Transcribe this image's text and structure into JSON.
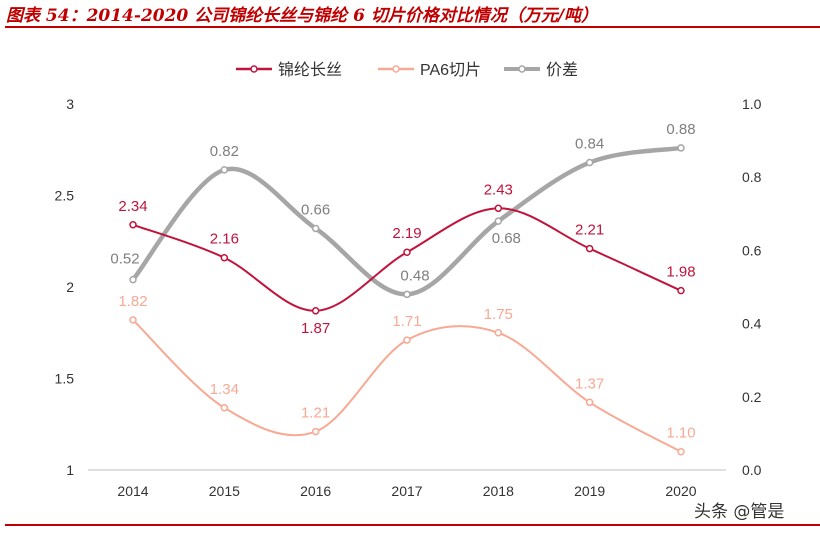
{
  "title": "图表 54：2014-2020 公司锦纶长丝与锦纶 6 切片价格对比情况（万元/吨）",
  "watermark": "头条 @管是",
  "chart_data": {
    "type": "line",
    "categories": [
      "2014",
      "2015",
      "2016",
      "2017",
      "2018",
      "2019",
      "2020"
    ],
    "y_left": {
      "range": [
        1,
        3
      ],
      "ticks": [
        "1",
        "1.5",
        "2",
        "2.5",
        "3"
      ]
    },
    "y_right": {
      "range": [
        0,
        1.0
      ],
      "ticks": [
        "0.0",
        "0.2",
        "0.4",
        "0.6",
        "0.8",
        "1.0"
      ]
    },
    "legend_position": "top",
    "grid": false,
    "smooth": true,
    "series": [
      {
        "name": "锦纶长丝",
        "axis": "left",
        "color": "#c0143c",
        "values": [
          2.34,
          2.16,
          1.87,
          2.19,
          2.43,
          2.21,
          1.98
        ],
        "labels": [
          "2.34",
          "2.16",
          "1.87",
          "2.19",
          "2.43",
          "2.21",
          "1.98"
        ]
      },
      {
        "name": "PA6切片",
        "axis": "left",
        "color": "#f8a994",
        "values": [
          1.82,
          1.34,
          1.21,
          1.71,
          1.75,
          1.37,
          1.1
        ],
        "labels": [
          "1.82",
          "1.34",
          "1.21",
          "1.71",
          "1.75",
          "1.37",
          "1.10"
        ]
      },
      {
        "name": "价差",
        "axis": "right",
        "color": "#a6a6a6",
        "values": [
          0.52,
          0.82,
          0.66,
          0.48,
          0.68,
          0.84,
          0.88
        ],
        "labels": [
          "0.52",
          "0.82",
          "0.66",
          "0.48",
          "0.68",
          "0.84",
          "0.88"
        ]
      }
    ]
  }
}
